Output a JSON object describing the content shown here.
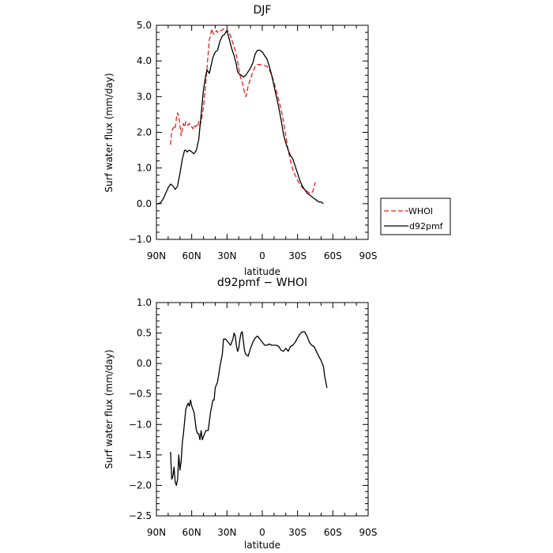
{
  "chart_data": [
    {
      "type": "line",
      "title": "DJF",
      "xlabel": "latitude",
      "ylabel": "Surf water flux (mm/day)",
      "xlim": [
        90,
        -90
      ],
      "ylim": [
        -1.0,
        5.0
      ],
      "x_ticks": [
        90,
        60,
        30,
        0,
        -30,
        -60,
        -90
      ],
      "x_tick_labels": [
        "90N",
        "60N",
        "30N",
        "0",
        "30S",
        "60S",
        "90S"
      ],
      "y_ticks": [
        -1.0,
        0.0,
        1.0,
        2.0,
        3.0,
        4.0,
        5.0
      ],
      "y_tick_labels": [
        "−1.0",
        "0.0",
        "1.0",
        "2.0",
        "3.0",
        "4.0",
        "5.0"
      ],
      "grid": false,
      "legend_position": "outside-right",
      "series": [
        {
          "name": "WHOI",
          "color": "#e8211e",
          "dash": "dashed",
          "points": [
            [
              78,
              1.65
            ],
            [
              77,
              2.05
            ],
            [
              76,
              2.1
            ],
            [
              75,
              2.15
            ],
            [
              74,
              2.1
            ],
            [
              73,
              2.4
            ],
            [
              72,
              2.55
            ],
            [
              71,
              2.45
            ],
            [
              70,
              2.2
            ],
            [
              69,
              1.9
            ],
            [
              68,
              2.1
            ],
            [
              67,
              2.25
            ],
            [
              66,
              2.15
            ],
            [
              65,
              2.3
            ],
            [
              64,
              2.25
            ],
            [
              63,
              2.2
            ],
            [
              62,
              2.25
            ],
            [
              61,
              2.2
            ],
            [
              60,
              2.15
            ],
            [
              59,
              2.1
            ],
            [
              58,
              2.2
            ],
            [
              57,
              2.15
            ],
            [
              56,
              2.2
            ],
            [
              55,
              2.15
            ],
            [
              54,
              2.3
            ],
            [
              53,
              2.2
            ],
            [
              52,
              2.3
            ],
            [
              50,
              2.7
            ],
            [
              48,
              3.4
            ],
            [
              46,
              4.2
            ],
            [
              45,
              4.6
            ],
            [
              44,
              4.7
            ],
            [
              43,
              4.9
            ],
            [
              42,
              4.8
            ],
            [
              41,
              4.75
            ],
            [
              40,
              4.8
            ],
            [
              39,
              4.85
            ],
            [
              38,
              4.8
            ],
            [
              37,
              4.85
            ],
            [
              35,
              4.85
            ],
            [
              33,
              4.9
            ],
            [
              31,
              4.8
            ],
            [
              29,
              4.85
            ],
            [
              27,
              4.7
            ],
            [
              25,
              4.5
            ],
            [
              23,
              4.3
            ],
            [
              21,
              4.0
            ],
            [
              19,
              3.6
            ],
            [
              17,
              3.4
            ],
            [
              15,
              3.1
            ],
            [
              14,
              3.0
            ],
            [
              13,
              3.1
            ],
            [
              12,
              3.3
            ],
            [
              10,
              3.5
            ],
            [
              8,
              3.7
            ],
            [
              6,
              3.85
            ],
            [
              4,
              3.9
            ],
            [
              2,
              3.9
            ],
            [
              0,
              3.88
            ],
            [
              -2,
              3.87
            ],
            [
              -4,
              3.85
            ],
            [
              -6,
              3.75
            ],
            [
              -8,
              3.6
            ],
            [
              -10,
              3.4
            ],
            [
              -12,
              3.15
            ],
            [
              -14,
              2.9
            ],
            [
              -16,
              2.65
            ],
            [
              -18,
              2.3
            ],
            [
              -20,
              1.9
            ],
            [
              -22,
              1.5
            ],
            [
              -24,
              1.2
            ],
            [
              -26,
              0.95
            ],
            [
              -28,
              0.8
            ],
            [
              -30,
              0.65
            ],
            [
              -32,
              0.55
            ],
            [
              -34,
              0.45
            ],
            [
              -36,
              0.4
            ],
            [
              -38,
              0.35
            ],
            [
              -40,
              0.3
            ],
            [
              -42,
              0.3
            ],
            [
              -43,
              0.35
            ],
            [
              -44,
              0.45
            ],
            [
              -45,
              0.6
            ]
          ]
        },
        {
          "name": "d92pmf",
          "color": "#000000",
          "dash": "solid",
          "points": [
            [
              90,
              0.0
            ],
            [
              88,
              0.0
            ],
            [
              86,
              0.05
            ],
            [
              84,
              0.15
            ],
            [
              82,
              0.3
            ],
            [
              80,
              0.45
            ],
            [
              78,
              0.55
            ],
            [
              76,
              0.5
            ],
            [
              74,
              0.4
            ],
            [
              72,
              0.5
            ],
            [
              70,
              0.85
            ],
            [
              68,
              1.25
            ],
            [
              66,
              1.5
            ],
            [
              65,
              1.5
            ],
            [
              64,
              1.45
            ],
            [
              62,
              1.5
            ],
            [
              60,
              1.45
            ],
            [
              58,
              1.4
            ],
            [
              56,
              1.5
            ],
            [
              54,
              1.8
            ],
            [
              52,
              2.5
            ],
            [
              50,
              3.2
            ],
            [
              48,
              3.6
            ],
            [
              47,
              3.75
            ],
            [
              46,
              3.7
            ],
            [
              45,
              3.65
            ],
            [
              44,
              3.8
            ],
            [
              42,
              4.1
            ],
            [
              40,
              4.25
            ],
            [
              38,
              4.3
            ],
            [
              36,
              4.55
            ],
            [
              34,
              4.7
            ],
            [
              32,
              4.75
            ],
            [
              30,
              4.85
            ],
            [
              28,
              4.6
            ],
            [
              26,
              4.35
            ],
            [
              24,
              4.15
            ],
            [
              22,
              3.9
            ],
            [
              21,
              3.7
            ],
            [
              20,
              3.65
            ],
            [
              18,
              3.6
            ],
            [
              16,
              3.55
            ],
            [
              14,
              3.6
            ],
            [
              12,
              3.7
            ],
            [
              10,
              3.8
            ],
            [
              8,
              3.95
            ],
            [
              6,
              4.2
            ],
            [
              4,
              4.3
            ],
            [
              2,
              4.3
            ],
            [
              0,
              4.25
            ],
            [
              -2,
              4.15
            ],
            [
              -4,
              4.05
            ],
            [
              -6,
              3.85
            ],
            [
              -8,
              3.6
            ],
            [
              -10,
              3.3
            ],
            [
              -12,
              3.0
            ],
            [
              -14,
              2.7
            ],
            [
              -16,
              2.35
            ],
            [
              -18,
              1.95
            ],
            [
              -20,
              1.7
            ],
            [
              -22,
              1.5
            ],
            [
              -24,
              1.35
            ],
            [
              -26,
              1.25
            ],
            [
              -28,
              1.05
            ],
            [
              -30,
              0.85
            ],
            [
              -32,
              0.65
            ],
            [
              -34,
              0.5
            ],
            [
              -36,
              0.4
            ],
            [
              -38,
              0.3
            ],
            [
              -40,
              0.25
            ],
            [
              -42,
              0.2
            ],
            [
              -44,
              0.15
            ],
            [
              -46,
              0.1
            ],
            [
              -48,
              0.05
            ],
            [
              -50,
              0.05
            ],
            [
              -52,
              0.0
            ]
          ]
        }
      ]
    },
    {
      "type": "line",
      "title": "d92pmf − WHOI",
      "xlabel": "latitude",
      "ylabel": "Surf water flux (mm/day)",
      "xlim": [
        90,
        -90
      ],
      "ylim": [
        -2.5,
        1.0
      ],
      "x_ticks": [
        90,
        60,
        30,
        0,
        -30,
        -60,
        -90
      ],
      "x_tick_labels": [
        "90N",
        "60N",
        "30N",
        "0",
        "30S",
        "60S",
        "90S"
      ],
      "y_ticks": [
        -2.5,
        -2.0,
        -1.5,
        -1.0,
        -0.5,
        0.0,
        0.5,
        1.0
      ],
      "y_tick_labels": [
        "−2.5",
        "−2.0",
        "−1.5",
        "−1.0",
        "−0.5",
        "0.0",
        "0.5",
        "1.0"
      ],
      "grid": false,
      "series": [
        {
          "color": "#000000",
          "dash": "solid",
          "points": [
            [
              78,
              -1.45
            ],
            [
              77,
              -1.9
            ],
            [
              76,
              -1.85
            ],
            [
              75,
              -1.7
            ],
            [
              74,
              -1.95
            ],
            [
              73,
              -2.0
            ],
            [
              72,
              -1.9
            ],
            [
              71,
              -1.5
            ],
            [
              70,
              -1.75
            ],
            [
              69,
              -1.6
            ],
            [
              68,
              -1.3
            ],
            [
              67,
              -1.15
            ],
            [
              66,
              -0.95
            ],
            [
              65,
              -0.75
            ],
            [
              64,
              -0.7
            ],
            [
              63,
              -0.65
            ],
            [
              62,
              -0.7
            ],
            [
              61,
              -0.6
            ],
            [
              60,
              -0.7
            ],
            [
              58,
              -0.8
            ],
            [
              57,
              -0.95
            ],
            [
              56,
              -1.1
            ],
            [
              55,
              -1.15
            ],
            [
              54,
              -1.15
            ],
            [
              53,
              -1.25
            ],
            [
              52,
              -1.1
            ],
            [
              51,
              -1.25
            ],
            [
              50,
              -1.2
            ],
            [
              48,
              -1.1
            ],
            [
              46,
              -1.1
            ],
            [
              44,
              -0.8
            ],
            [
              42,
              -0.6
            ],
            [
              41,
              -0.6
            ],
            [
              40,
              -0.4
            ],
            [
              38,
              -0.3
            ],
            [
              36,
              -0.05
            ],
            [
              34,
              0.15
            ],
            [
              33,
              0.4
            ],
            [
              31,
              0.4
            ],
            [
              29,
              0.35
            ],
            [
              27,
              0.3
            ],
            [
              26,
              0.35
            ],
            [
              25,
              0.4
            ],
            [
              24,
              0.5
            ],
            [
              23,
              0.45
            ],
            [
              22,
              0.3
            ],
            [
              21,
              0.2
            ],
            [
              20,
              0.25
            ],
            [
              19,
              0.4
            ],
            [
              18,
              0.5
            ],
            [
              17,
              0.52
            ],
            [
              16,
              0.35
            ],
            [
              15,
              0.2
            ],
            [
              14,
              0.15
            ],
            [
              12,
              0.12
            ],
            [
              10,
              0.25
            ],
            [
              8,
              0.35
            ],
            [
              6,
              0.42
            ],
            [
              4,
              0.45
            ],
            [
              2,
              0.4
            ],
            [
              0,
              0.35
            ],
            [
              -2,
              0.3
            ],
            [
              -4,
              0.3
            ],
            [
              -6,
              0.32
            ],
            [
              -8,
              0.3
            ],
            [
              -10,
              0.3
            ],
            [
              -12,
              0.3
            ],
            [
              -14,
              0.28
            ],
            [
              -16,
              0.22
            ],
            [
              -18,
              0.2
            ],
            [
              -20,
              0.25
            ],
            [
              -22,
              0.2
            ],
            [
              -24,
              0.28
            ],
            [
              -26,
              0.3
            ],
            [
              -28,
              0.35
            ],
            [
              -30,
              0.42
            ],
            [
              -32,
              0.48
            ],
            [
              -34,
              0.52
            ],
            [
              -36,
              0.52
            ],
            [
              -38,
              0.45
            ],
            [
              -40,
              0.35
            ],
            [
              -42,
              0.3
            ],
            [
              -44,
              0.28
            ],
            [
              -46,
              0.2
            ],
            [
              -48,
              0.12
            ],
            [
              -50,
              0.05
            ],
            [
              -52,
              -0.05
            ],
            [
              -53,
              -0.2
            ],
            [
              -55,
              -0.4
            ]
          ]
        }
      ]
    }
  ]
}
